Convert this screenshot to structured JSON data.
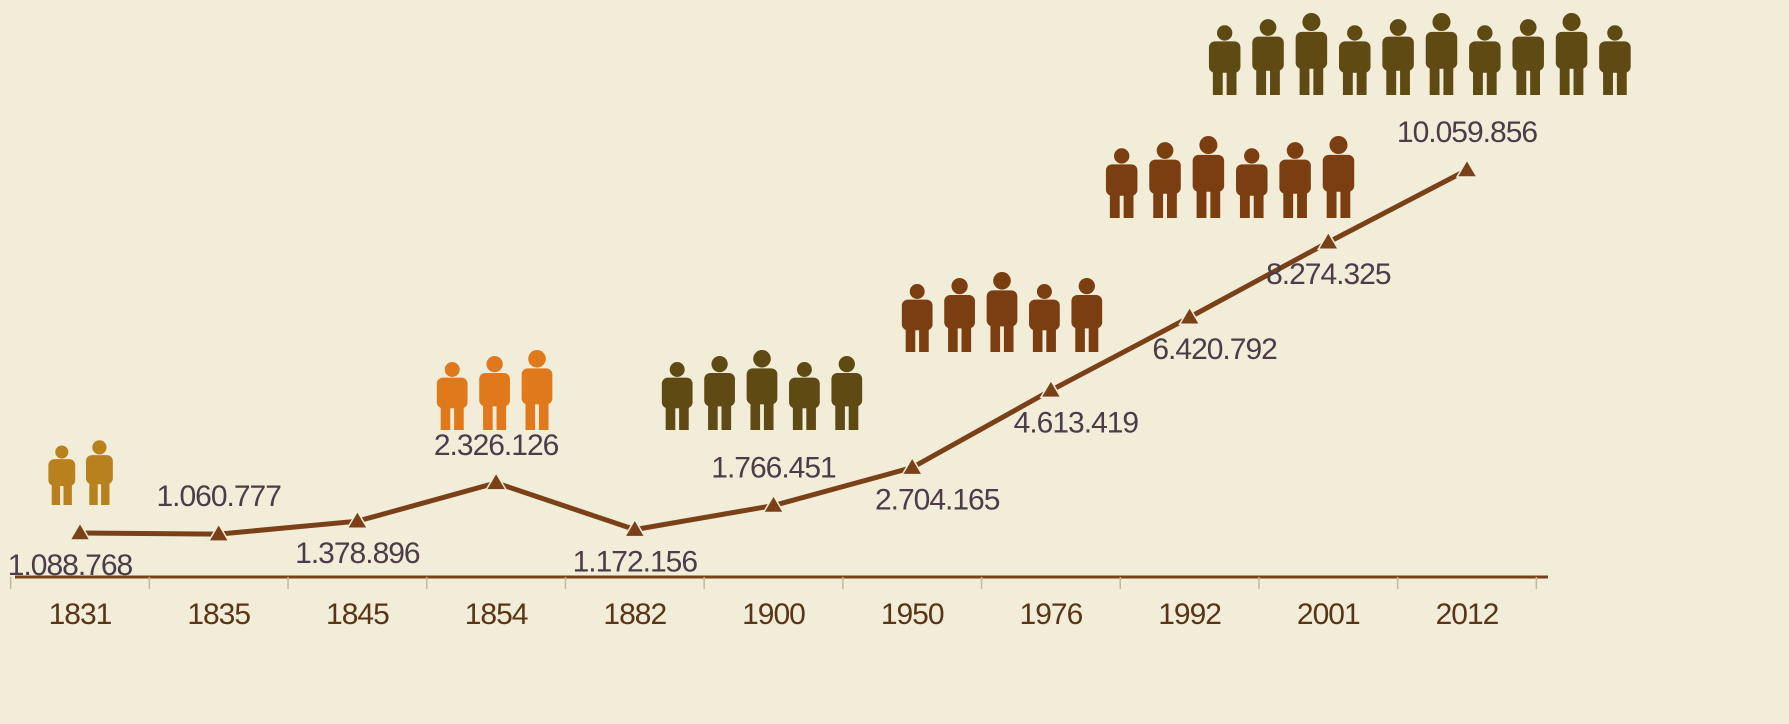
{
  "chart_data": {
    "type": "line",
    "categories": [
      "1831",
      "1835",
      "1845",
      "1854",
      "1882",
      "1900",
      "1950",
      "1976",
      "1992",
      "2001",
      "2012"
    ],
    "values": [
      1088768,
      1060777,
      1378896,
      2326126,
      1172156,
      1766451,
      2704165,
      4613419,
      6420792,
      8274325,
      10059856
    ],
    "value_labels": [
      "1.088.768",
      "1.060.777",
      "1.378.896",
      "2.326.126",
      "1.172.156",
      "1.766.451",
      "2.704.165",
      "4.613.419",
      "6.420.792",
      "8.274.325",
      "10.059.856"
    ],
    "color": "#7a4118"
  }
}
